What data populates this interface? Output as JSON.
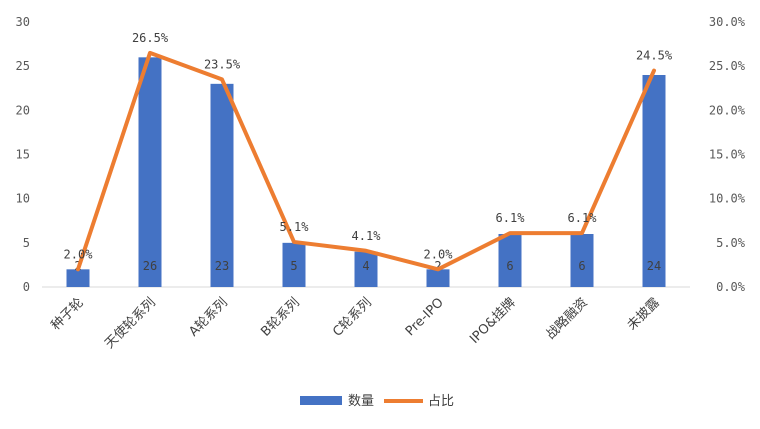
{
  "chart_data": {
    "type": "bar",
    "categories": [
      "种子轮",
      "天使轮系列",
      "A轮系列",
      "B轮系列",
      "C轮系列",
      "Pre-IPO",
      "IPO&挂牌",
      "战略融资",
      "未披露"
    ],
    "series": [
      {
        "name": "数量",
        "type": "bar",
        "axis": "left",
        "color": "#4472C4",
        "values": [
          2,
          26,
          23,
          5,
          4,
          2,
          6,
          6,
          24
        ],
        "labels": [
          "2",
          "26",
          "23",
          "5",
          "4",
          "2",
          "6",
          "6",
          "24"
        ]
      },
      {
        "name": "占比",
        "type": "line",
        "axis": "right",
        "color": "#ED7D31",
        "values": [
          2.0,
          26.5,
          23.5,
          5.1,
          4.1,
          2.0,
          6.1,
          6.1,
          24.5
        ],
        "labels": [
          "2.0%",
          "26.5%",
          "23.5%",
          "5.1%",
          "4.1%",
          "2.0%",
          "6.1%",
          "6.1%",
          "24.5%"
        ]
      }
    ],
    "y_left": {
      "min": 0,
      "max": 30,
      "step": 5,
      "ticks": [
        "0",
        "5",
        "10",
        "15",
        "20",
        "25",
        "30"
      ]
    },
    "y_right": {
      "min": 0,
      "max": 30,
      "step": 5,
      "ticks": [
        "0.0%",
        "5.0%",
        "10.0%",
        "15.0%",
        "20.0%",
        "25.0%",
        "30.0%"
      ]
    },
    "grid": false,
    "legend_position": "bottom"
  }
}
